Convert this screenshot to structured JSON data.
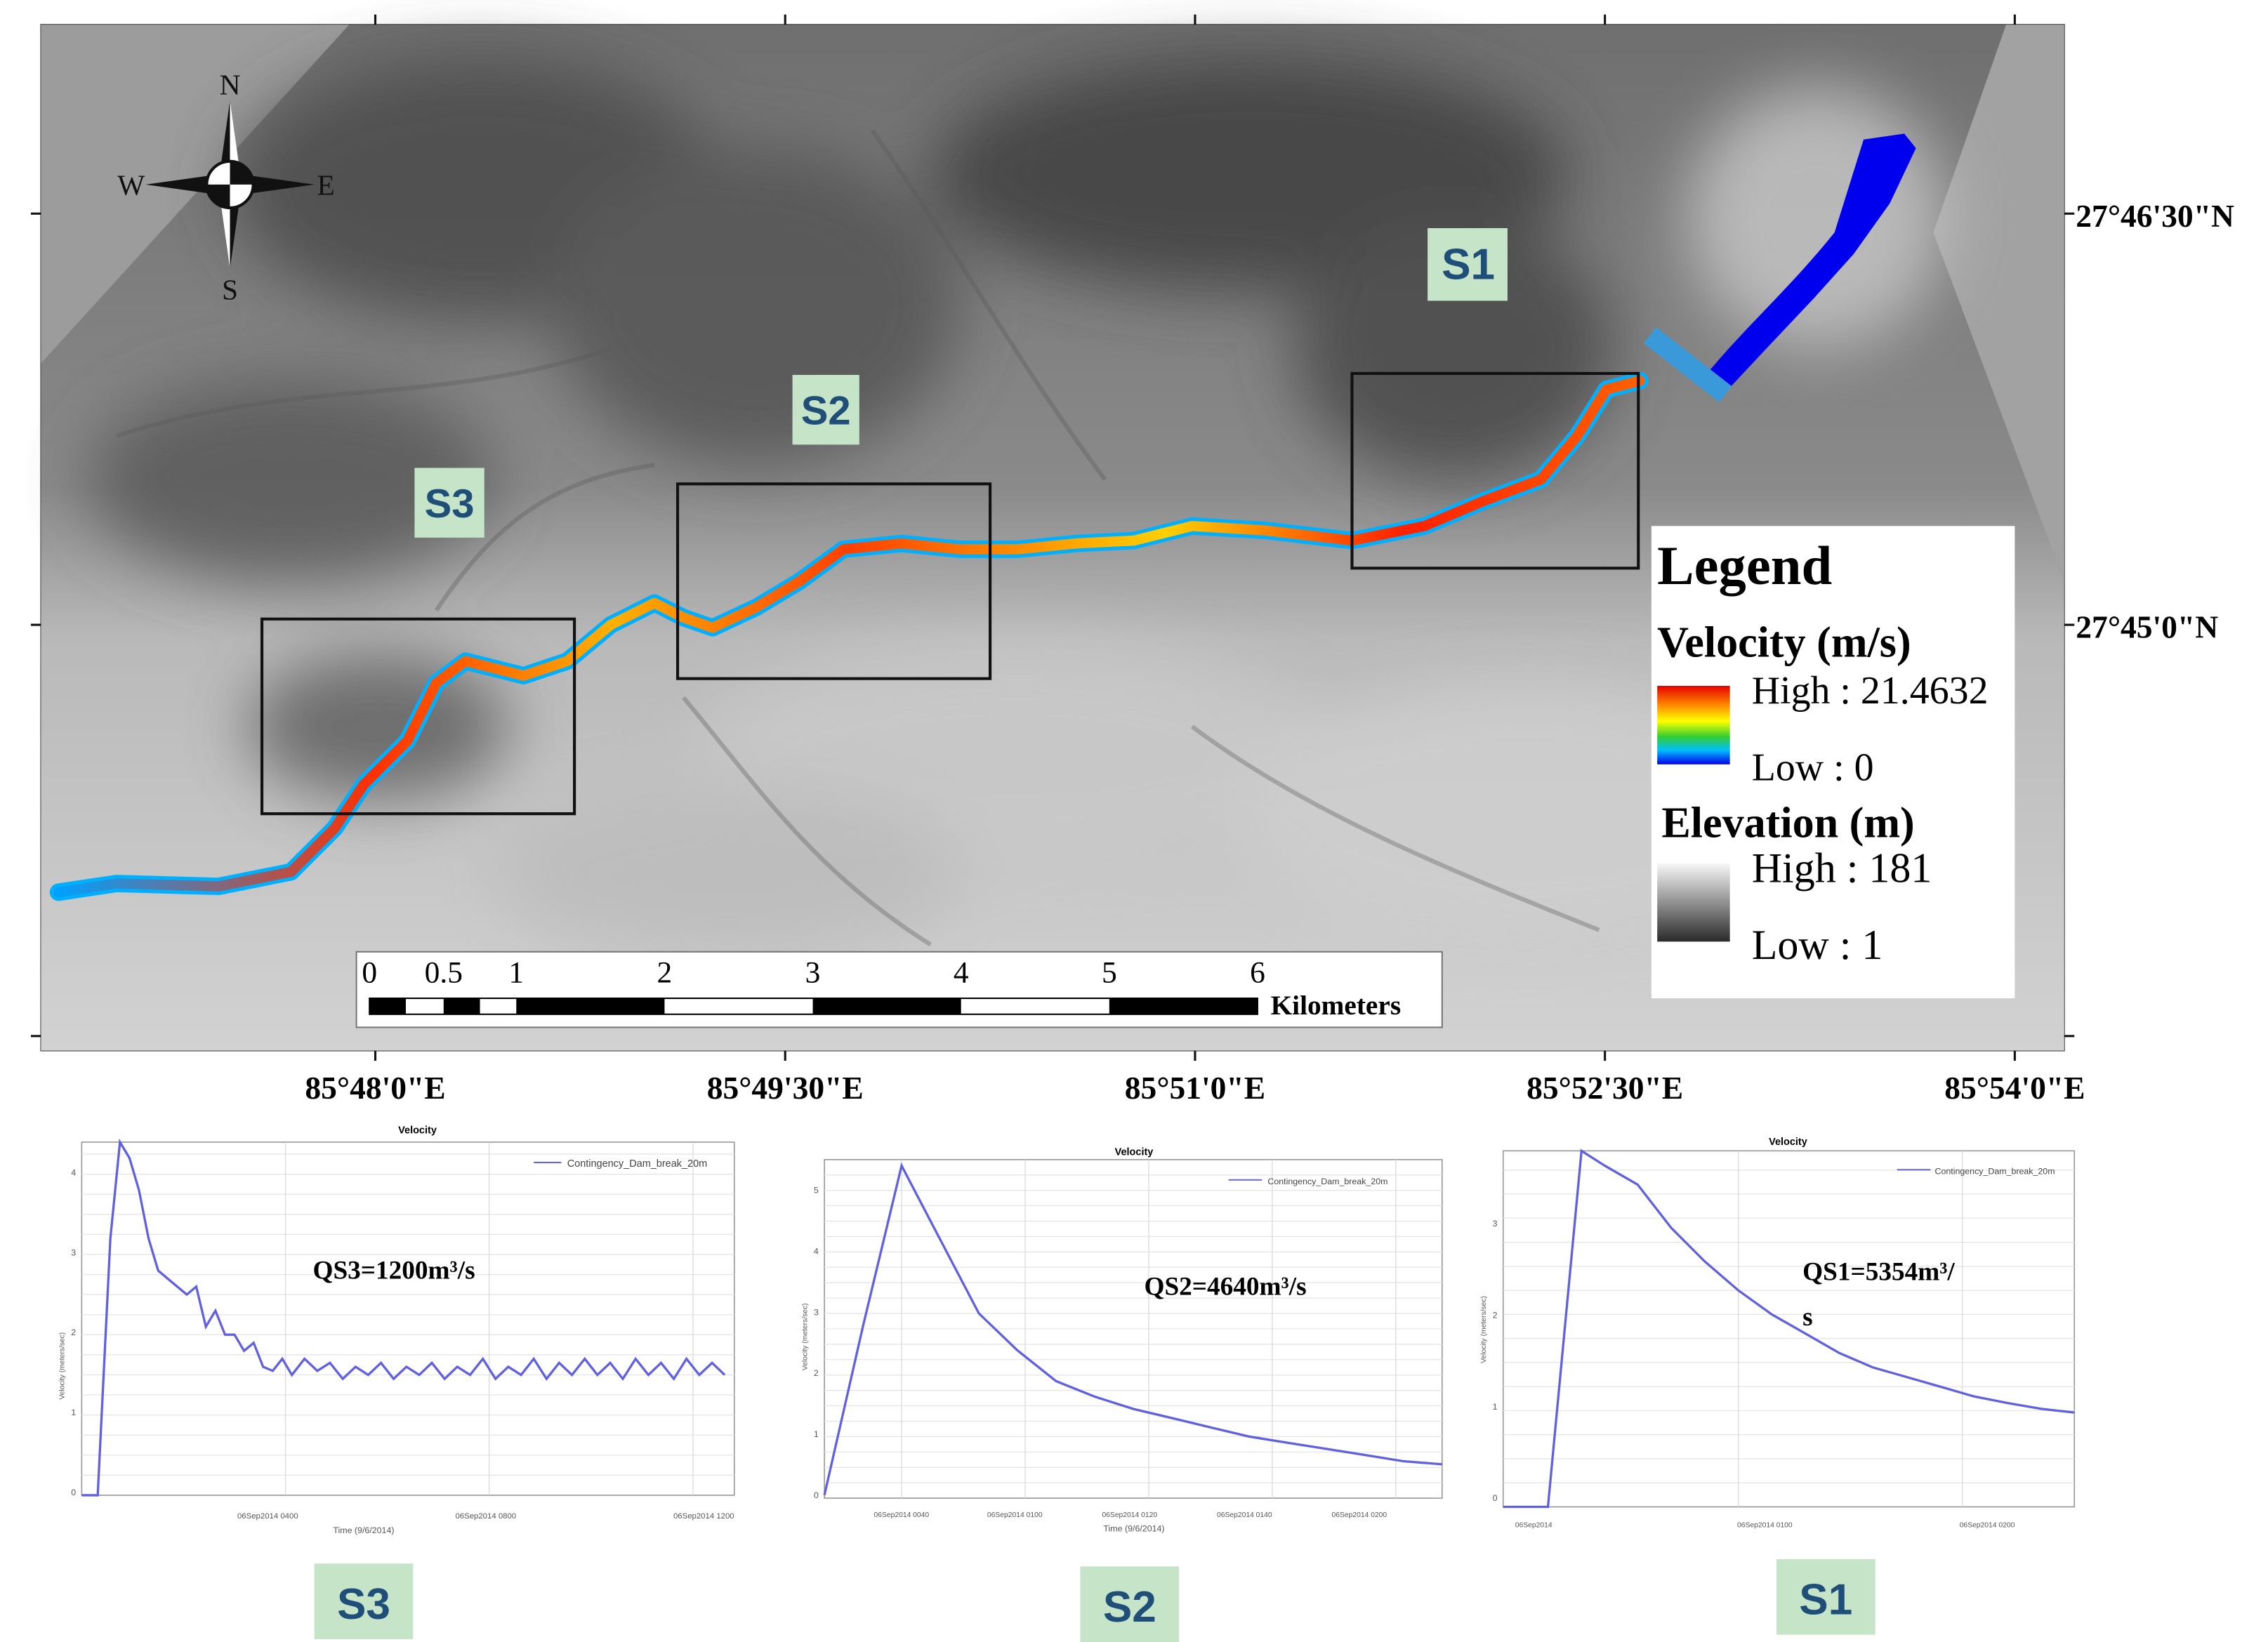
{
  "map": {
    "north_arrow": {
      "n": "N",
      "s": "S",
      "e": "E",
      "w": "W"
    },
    "section_labels": {
      "s1": "S1",
      "s2": "S2",
      "s3": "S3"
    },
    "lat_labels": [
      "27°46'30\"N",
      "27°45'0\"N"
    ],
    "lon_labels": [
      "85°48'0\"E",
      "85°49'30\"E",
      "85°51'0\"E",
      "85°52'30\"E",
      "85°54'0\"E"
    ],
    "scale_bar": {
      "ticks": [
        "0",
        "0.5",
        "1",
        "2",
        "3",
        "4",
        "5",
        "6"
      ],
      "unit": "Kilometers"
    },
    "legend": {
      "title": "Legend",
      "velocity_title": "Velocity (m/s)",
      "velocity_high": "High : 21.4632",
      "velocity_low": "Low : 0",
      "elevation_title": "Elevation (m)",
      "elevation_high": "High : 181",
      "elevation_low": "Low : 1"
    },
    "colors": {
      "water_upstream": "#0000ee",
      "dam": "#3a9ad9",
      "section_label_bg": "#c6e4c8",
      "section_label_text": "#1f4e79"
    }
  },
  "charts": [
    {
      "id": "s3",
      "title": "Velocity",
      "legend": "Contingency_Dam_break_20m",
      "annotation": "QS3=1200m³/s",
      "ylabel": "Velocity (meters/sec)",
      "xlabel": "Time (9/6/2014)",
      "x_ticks": [
        "06Sep2014 0400",
        "06Sep2014 0800",
        "06Sep2014 1200"
      ],
      "y_ticks": [
        "0",
        "1",
        "2",
        "3",
        "4"
      ],
      "caption": "S3"
    },
    {
      "id": "s2",
      "title": "Velocity",
      "legend": "Contingency_Dam_break_20m",
      "annotation": "QS2=4640m³/s",
      "ylabel": "Velocity (meters/sec)",
      "xlabel": "Time (9/6/2014)",
      "x_ticks": [
        "06Sep2014 0040",
        "06Sep2014 0100",
        "06Sep2014 0120",
        "06Sep2014 0140",
        "06Sep2014 0200"
      ],
      "y_ticks": [
        "0",
        "1",
        "2",
        "3",
        "4",
        "5"
      ],
      "caption": "S2"
    },
    {
      "id": "s1",
      "title": "Velocity",
      "legend": "Contingency_Dam_break_20m",
      "annotation_line1": "QS1=5354m³/",
      "annotation_line2": "s",
      "ylabel": "Velocity (meters/sec)",
      "xlabel": "",
      "x_ticks": [
        "06Sep2014",
        "06Sep2014 0100",
        "06Sep2014 0200"
      ],
      "y_ticks": [
        "0",
        "1",
        "2",
        "3"
      ],
      "caption": "S1"
    }
  ],
  "chart_data": [
    {
      "type": "line",
      "title": "Velocity",
      "xlabel": "Time (9/6/2014)",
      "ylabel": "Velocity (meters/sec)",
      "ylim": [
        0,
        4.4
      ],
      "series": [
        {
          "name": "Contingency_Dam_break_20m",
          "x": [
            0,
            0.05,
            0.09,
            0.12,
            0.15,
            0.18,
            0.21,
            0.24,
            0.27,
            0.3,
            0.33,
            0.36,
            0.39,
            0.42,
            0.45,
            0.48,
            0.51,
            0.54,
            0.57,
            0.6,
            0.63,
            0.66,
            0.7,
            0.74,
            0.78,
            0.82,
            0.86,
            0.9,
            0.94,
            0.98,
            1.02,
            1.06,
            1.1,
            1.14,
            1.18,
            1.22,
            1.26,
            1.3,
            1.34,
            1.38,
            1.42,
            1.46,
            1.5,
            1.54,
            1.58,
            1.62,
            1.66,
            1.7,
            1.74,
            1.78,
            1.82,
            1.86,
            1.9,
            1.94,
            1.98,
            2.02
          ],
          "y": [
            0,
            0,
            3.2,
            4.4,
            4.2,
            3.8,
            3.2,
            2.8,
            2.7,
            2.6,
            2.5,
            2.6,
            2.1,
            2.3,
            2.0,
            2.0,
            1.8,
            1.9,
            1.6,
            1.55,
            1.7,
            1.5,
            1.7,
            1.55,
            1.65,
            1.45,
            1.6,
            1.5,
            1.65,
            1.45,
            1.6,
            1.5,
            1.65,
            1.45,
            1.6,
            1.5,
            1.7,
            1.45,
            1.6,
            1.5,
            1.7,
            1.45,
            1.65,
            1.5,
            1.7,
            1.5,
            1.65,
            1.45,
            1.7,
            1.5,
            1.65,
            1.45,
            1.7,
            1.5,
            1.65,
            1.5
          ]
        }
      ]
    },
    {
      "type": "line",
      "title": "Velocity",
      "xlabel": "Time (9/6/2014)",
      "ylabel": "Velocity (meters/sec)",
      "ylim": [
        0,
        5.5
      ],
      "series": [
        {
          "name": "Contingency_Dam_break_20m",
          "x": [
            0,
            0.05,
            0.1,
            0.15,
            0.2,
            0.25,
            0.3,
            0.35,
            0.4,
            0.45,
            0.5,
            0.55,
            0.6,
            0.65,
            0.7,
            0.75,
            0.8
          ],
          "y": [
            0.05,
            2.8,
            5.4,
            4.2,
            3.0,
            2.4,
            1.9,
            1.65,
            1.45,
            1.3,
            1.15,
            1.0,
            0.9,
            0.8,
            0.7,
            0.6,
            0.55
          ]
        }
      ]
    },
    {
      "type": "line",
      "title": "Velocity",
      "xlabel": "",
      "ylabel": "Velocity (meters/sec)",
      "ylim": [
        0,
        3.7
      ],
      "series": [
        {
          "name": "Contingency_Dam_break_20m",
          "x": [
            0,
            0.08,
            0.14,
            0.18,
            0.24,
            0.3,
            0.36,
            0.42,
            0.48,
            0.54,
            0.6,
            0.66,
            0.72,
            0.78,
            0.84,
            0.9,
            0.96,
            1.02
          ],
          "y": [
            0,
            0,
            3.7,
            3.55,
            3.35,
            2.9,
            2.55,
            2.25,
            2.0,
            1.8,
            1.6,
            1.45,
            1.35,
            1.25,
            1.15,
            1.08,
            1.02,
            0.98
          ]
        }
      ]
    }
  ]
}
